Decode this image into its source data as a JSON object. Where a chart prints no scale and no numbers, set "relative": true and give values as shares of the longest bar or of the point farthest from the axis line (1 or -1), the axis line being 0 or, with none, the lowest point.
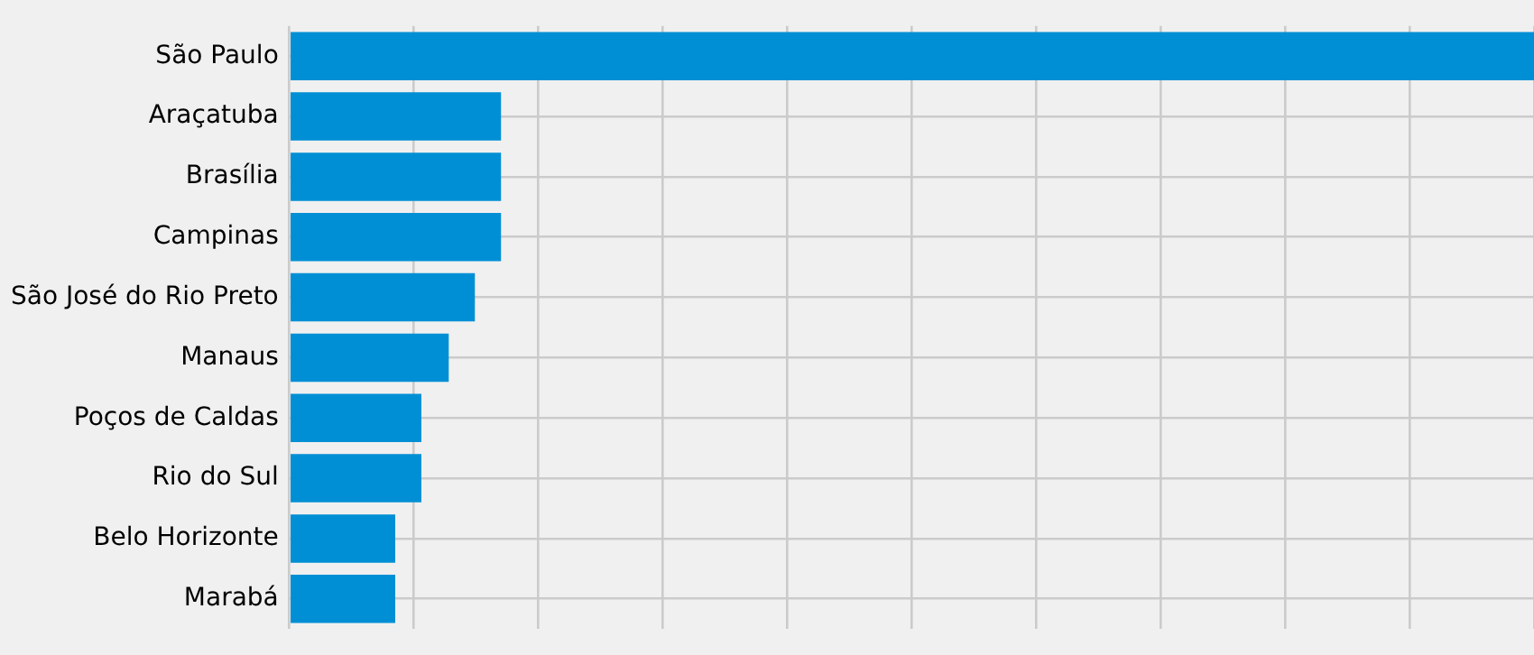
{
  "chart_data": {
    "type": "bar",
    "orientation": "horizontal",
    "relative": true,
    "categories": [
      "São Paulo",
      "Araçatuba",
      "Brasília",
      "Campinas",
      "São José do Rio Preto",
      "Manaus",
      "Poços de Caldas",
      "Rio do Sul",
      "Belo Horizonte",
      "Marabá"
    ],
    "values": [
      1,
      0.17,
      0.17,
      0.17,
      0.149,
      0.128,
      0.106,
      0.106,
      0.085,
      0.085
    ],
    "color": "#008fd5",
    "grid": true
  }
}
